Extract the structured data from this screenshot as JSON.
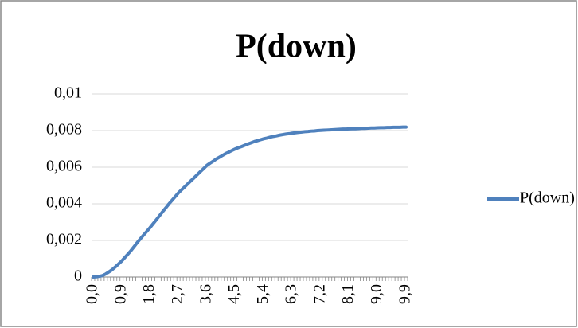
{
  "chart_data": {
    "type": "line",
    "title": "P(down)",
    "categories": [
      "0,0",
      null,
      null,
      null,
      null,
      null,
      null,
      null,
      null,
      "0,9",
      null,
      null,
      null,
      null,
      null,
      null,
      null,
      null,
      "1,8",
      null,
      null,
      null,
      null,
      null,
      null,
      null,
      null,
      "2,7",
      null,
      null,
      null,
      null,
      null,
      null,
      null,
      null,
      "3,6",
      null,
      null,
      null,
      null,
      null,
      null,
      null,
      null,
      "4,5",
      null,
      null,
      null,
      null,
      null,
      null,
      null,
      null,
      "5,4",
      null,
      null,
      null,
      null,
      null,
      null,
      null,
      null,
      "6,3",
      null,
      null,
      null,
      null,
      null,
      null,
      null,
      null,
      "7,2",
      null,
      null,
      null,
      null,
      null,
      null,
      null,
      null,
      "8,1",
      null,
      null,
      null,
      null,
      null,
      null,
      null,
      null,
      "9,0",
      null,
      null,
      null,
      null,
      null,
      null,
      null,
      null,
      "9,9"
    ],
    "series": [
      {
        "name": "P(down)",
        "color": "#4f81bd",
        "values": [
          0,
          1e-05,
          4e-05,
          8e-05,
          0.00017,
          0.00028,
          0.0004,
          0.00055,
          0.00071,
          0.00087,
          0.00106,
          0.00125,
          0.00145,
          0.00167,
          0.00189,
          0.0021,
          0.0023,
          0.0025,
          0.0027,
          0.00292,
          0.00313,
          0.00335,
          0.00357,
          0.00378,
          0.004,
          0.0042,
          0.0044,
          0.0046,
          0.00477,
          0.00493,
          0.0051,
          0.00527,
          0.00543,
          0.0056,
          0.00577,
          0.00593,
          0.0061,
          0.00622,
          0.00633,
          0.00645,
          0.00655,
          0.00665,
          0.00675,
          0.00683,
          0.00692,
          0.007,
          0.00707,
          0.00713,
          0.0072,
          0.00727,
          0.00733,
          0.0074,
          0.00745,
          0.0075,
          0.00755,
          0.00759,
          0.00764,
          0.00768,
          0.00771,
          0.00775,
          0.00778,
          0.00781,
          0.00783,
          0.00786,
          0.00788,
          0.0079,
          0.00792,
          0.00794,
          0.00795,
          0.00797,
          0.00798,
          0.008,
          0.00801,
          0.00802,
          0.00803,
          0.00804,
          0.00805,
          0.00806,
          0.00807,
          0.00808,
          0.00808,
          0.00809,
          0.0081,
          0.0081,
          0.00811,
          0.00812,
          0.00812,
          0.00813,
          0.00814,
          0.00814,
          0.00815,
          0.00816,
          0.00816,
          0.00817,
          0.00817,
          0.00818,
          0.00818,
          0.00818,
          0.00819,
          0.00819
        ]
      }
    ],
    "ylim": [
      0,
      0.01
    ],
    "yticks": [
      0,
      {
        "value": 0.002,
        "label": "0,002"
      },
      {
        "value": 0.004,
        "label": "0,004"
      },
      {
        "value": 0.006,
        "label": "0,006"
      },
      {
        "value": 0.008,
        "label": "0,008"
      },
      {
        "value": 0.01,
        "label": "0,01"
      }
    ],
    "grid": true,
    "legend": "right"
  }
}
